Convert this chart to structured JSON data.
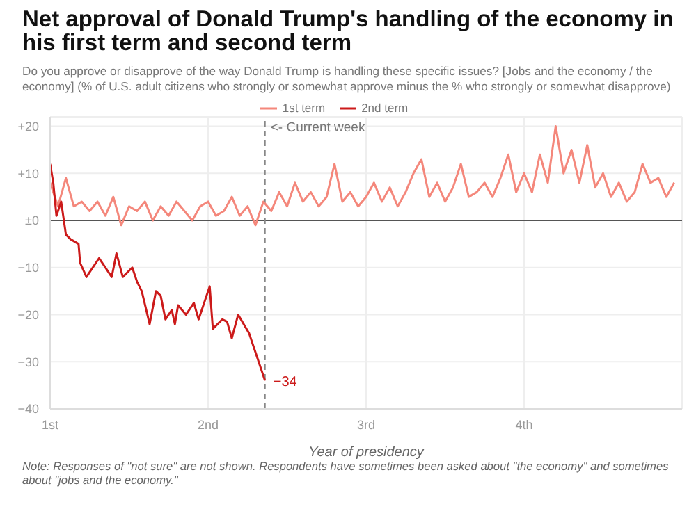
{
  "chart_data": {
    "type": "line",
    "title": "Net approval of Donald Trump's handling of the economy in his first term and second term",
    "subtitle": "Do you approve or disapprove of the way Donald Trump is handling these specific issues? [Jobs and the economy / the economy] (% of U.S. adult citizens who strongly or somewhat approve minus the % who strongly or somewhat disapprove)",
    "xlabel": "Year of presidency",
    "annotations": [
      "Note: Responses of \"not sure\" are not shown. Respondents have sometimes been asked about \"the economy\" and sometimes about \"jobs and the economy.\""
    ],
    "xlim": [
      1,
      5
    ],
    "xticks": [
      {
        "value": 1,
        "label": "1st"
      },
      {
        "value": 2,
        "label": "2nd"
      },
      {
        "value": 3,
        "label": "3rd"
      },
      {
        "value": 4,
        "label": "4th"
      }
    ],
    "ylim": [
      -40,
      22
    ],
    "yticks": [
      {
        "value": -40,
        "label": "−40"
      },
      {
        "value": -30,
        "label": "−30"
      },
      {
        "value": -20,
        "label": "−20"
      },
      {
        "value": -10,
        "label": "−10"
      },
      {
        "value": 0,
        "label": "±0"
      },
      {
        "value": 10,
        "label": "+10"
      },
      {
        "value": 20,
        "label": "+20"
      }
    ],
    "grid": true,
    "legend": "top",
    "marker": "none",
    "line_style": "solid",
    "ref_lines": [
      {
        "axis": "y",
        "value": 0,
        "color": "#555555",
        "line_style": "solid"
      },
      {
        "axis": "x",
        "value": 2.36,
        "label": "<- Current week",
        "color": "#888888",
        "line_style": "dashed"
      }
    ],
    "series": [
      {
        "name": "1st term",
        "color": "#f4877b",
        "x": [
          1,
          1.05,
          1.1,
          1.15,
          1.2,
          1.25,
          1.3,
          1.35,
          1.4,
          1.45,
          1.5,
          1.55,
          1.6,
          1.65,
          1.7,
          1.75,
          1.8,
          1.85,
          1.9,
          1.95,
          2,
          2.05,
          2.1,
          2.15,
          2.2,
          2.25,
          2.3,
          2.35,
          2.4,
          2.45,
          2.5,
          2.55,
          2.6,
          2.65,
          2.7,
          2.75,
          2.8,
          2.85,
          2.9,
          2.95,
          3,
          3.05,
          3.1,
          3.15,
          3.2,
          3.25,
          3.3,
          3.35,
          3.4,
          3.45,
          3.5,
          3.55,
          3.6,
          3.65,
          3.7,
          3.75,
          3.8,
          3.85,
          3.9,
          3.95,
          4,
          4.05,
          4.1,
          4.15,
          4.2,
          4.25,
          4.3,
          4.35,
          4.4,
          4.45,
          4.5,
          4.55,
          4.6,
          4.65,
          4.7,
          4.75,
          4.8,
          4.85,
          4.9,
          4.95
        ],
        "values": [
          8,
          3,
          9,
          3,
          4,
          2,
          4,
          1,
          5,
          -1,
          3,
          2,
          4,
          0,
          3,
          1,
          4,
          2,
          0,
          3,
          4,
          1,
          2,
          5,
          1,
          3,
          -1,
          4,
          2,
          6,
          3,
          8,
          4,
          6,
          3,
          5,
          12,
          4,
          6,
          3,
          5,
          8,
          4,
          7,
          3,
          6,
          10,
          13,
          5,
          8,
          4,
          7,
          12,
          5,
          6,
          8,
          5,
          9,
          14,
          6,
          10,
          6,
          14,
          8,
          20,
          10,
          15,
          8,
          16,
          7,
          10,
          5,
          8,
          4,
          6,
          12,
          8,
          9,
          5,
          8
        ]
      },
      {
        "name": "2nd term",
        "color": "#cc1a1a",
        "x": [
          1,
          1.02,
          1.04,
          1.07,
          1.1,
          1.13,
          1.18,
          1.19,
          1.23,
          1.31,
          1.39,
          1.42,
          1.46,
          1.52,
          1.55,
          1.58,
          1.63,
          1.67,
          1.7,
          1.73,
          1.77,
          1.79,
          1.81,
          1.86,
          1.91,
          1.94,
          2.01,
          2.03,
          2.09,
          2.12,
          2.15,
          2.19,
          2.26,
          2.36
        ],
        "values": [
          12,
          8,
          1,
          4,
          -3,
          -4,
          -5,
          -9,
          -12,
          -8,
          -12,
          -7,
          -12,
          -10,
          -13,
          -15,
          -22,
          -15,
          -16,
          -21,
          -19,
          -22,
          -18,
          -20,
          -17.5,
          -21,
          -14,
          -23,
          -21,
          -21.5,
          -25,
          -20,
          -24,
          -34
        ],
        "value_labels": [
          null,
          null,
          null,
          null,
          null,
          null,
          null,
          null,
          null,
          null,
          null,
          null,
          null,
          null,
          null,
          null,
          null,
          null,
          null,
          null,
          null,
          null,
          null,
          null,
          null,
          null,
          null,
          null,
          null,
          null,
          null,
          null,
          null,
          "−34"
        ]
      }
    ]
  }
}
